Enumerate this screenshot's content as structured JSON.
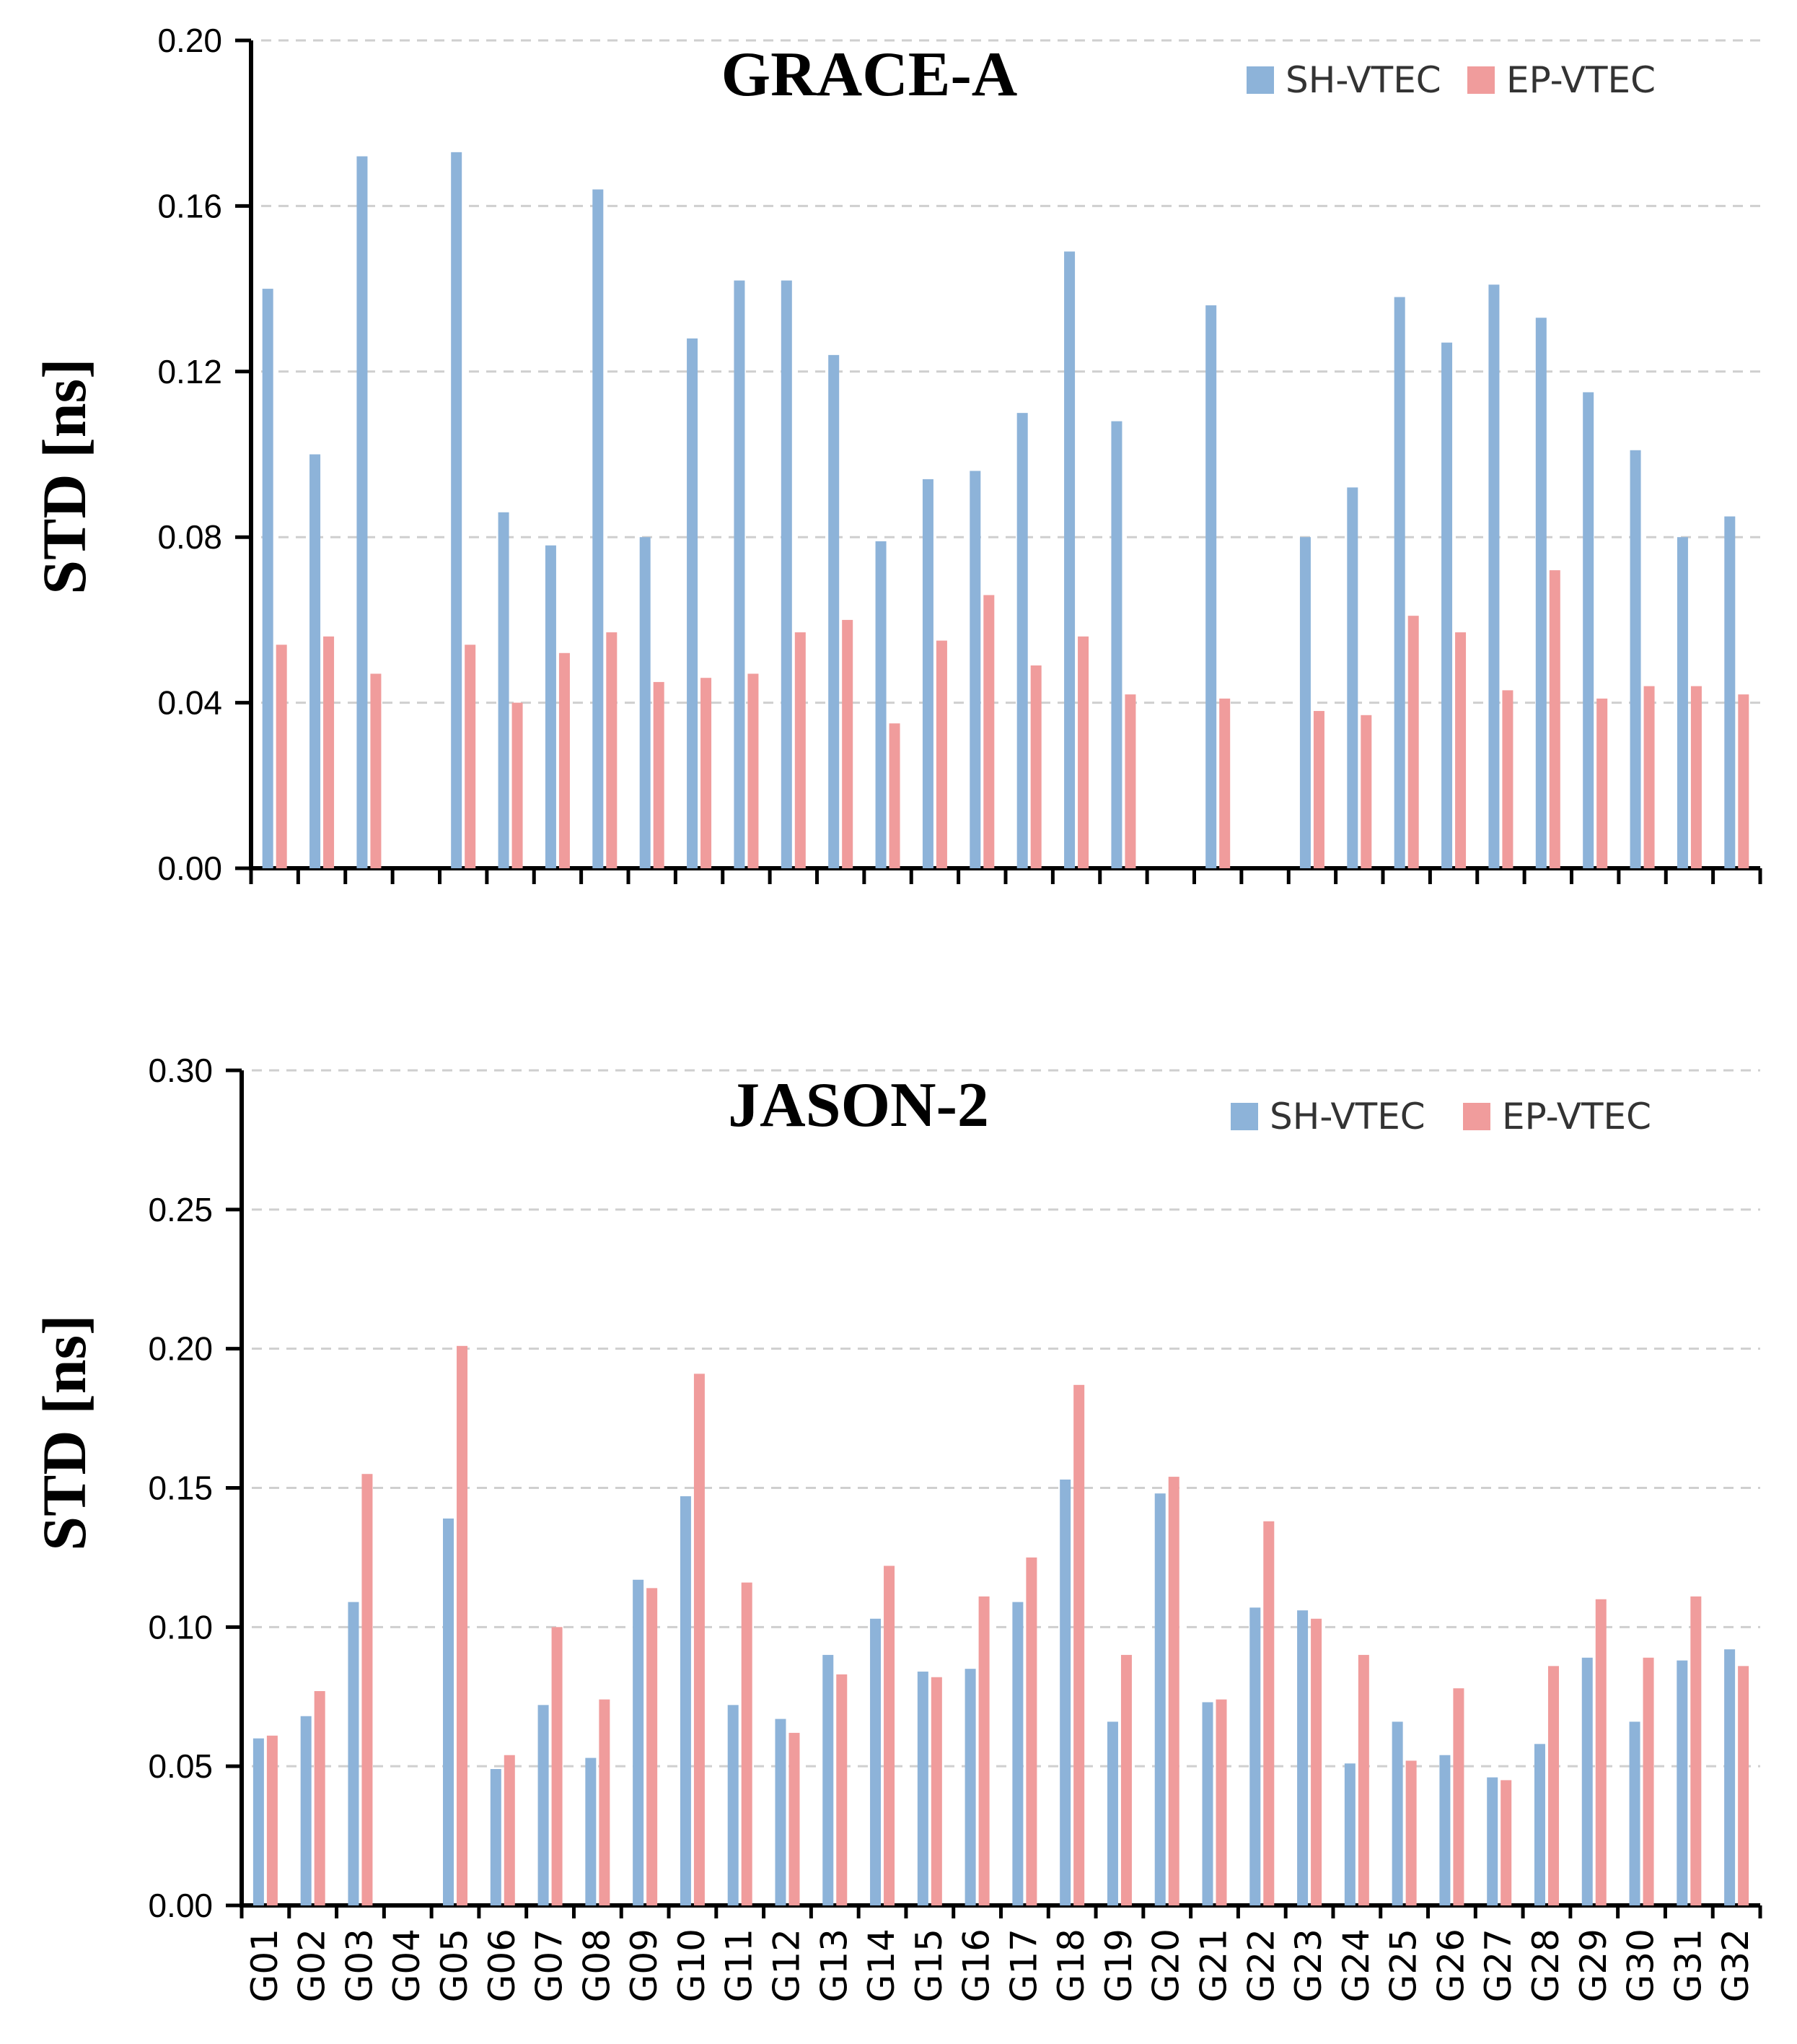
{
  "chart_data": [
    {
      "type": "bar",
      "title": "GRACE-A",
      "xlabel": "",
      "ylabel": "STD [ns]",
      "ylim": [
        0,
        0.2
      ],
      "yticks": [
        "0.00",
        "0.04",
        "0.08",
        "0.12",
        "0.16",
        "0.20"
      ],
      "grid": true,
      "legend_position": "top-right",
      "categories": [
        "G01",
        "G02",
        "G03",
        "G04",
        "G05",
        "G06",
        "G07",
        "G08",
        "G09",
        "G10",
        "G11",
        "G12",
        "G13",
        "G14",
        "G15",
        "G16",
        "G17",
        "G18",
        "G19",
        "G20",
        "G21",
        "G22",
        "G23",
        "G24",
        "G25",
        "G26",
        "G27",
        "G28",
        "G29",
        "G30",
        "G31",
        "G32"
      ],
      "series": [
        {
          "name": "SH-VTEC",
          "color": "#8db3d9",
          "values": [
            0.14,
            0.1,
            0.172,
            null,
            0.173,
            0.086,
            0.078,
            0.164,
            0.08,
            0.128,
            0.142,
            0.142,
            0.124,
            0.079,
            0.094,
            0.096,
            0.11,
            0.149,
            0.108,
            null,
            0.136,
            null,
            0.08,
            0.092,
            0.138,
            0.127,
            0.141,
            0.133,
            0.115,
            0.101,
            0.08,
            0.085
          ]
        },
        {
          "name": "EP-VTEC",
          "color": "#f09c9c",
          "values": [
            0.054,
            0.056,
            0.047,
            null,
            0.054,
            0.04,
            0.052,
            0.057,
            0.045,
            0.046,
            0.047,
            0.057,
            0.06,
            0.035,
            0.055,
            0.066,
            0.049,
            0.056,
            0.042,
            null,
            0.041,
            null,
            0.038,
            0.037,
            0.061,
            0.057,
            0.043,
            0.072,
            0.041,
            0.044,
            0.044,
            0.042
          ]
        }
      ]
    },
    {
      "type": "bar",
      "title": "JASON-2",
      "xlabel": "",
      "ylabel": "STD [ns]",
      "ylim": [
        0,
        0.3
      ],
      "yticks": [
        "0.00",
        "0.05",
        "0.10",
        "0.15",
        "0.20",
        "0.25",
        "0.30"
      ],
      "grid": true,
      "legend_position": "top-right",
      "categories": [
        "G01",
        "G02",
        "G03",
        "G04",
        "G05",
        "G06",
        "G07",
        "G08",
        "G09",
        "G10",
        "G11",
        "G12",
        "G13",
        "G14",
        "G15",
        "G16",
        "G17",
        "G18",
        "G19",
        "G20",
        "G21",
        "G22",
        "G23",
        "G24",
        "G25",
        "G26",
        "G27",
        "G28",
        "G29",
        "G30",
        "G31",
        "G32"
      ],
      "series": [
        {
          "name": "SH-VTEC",
          "color": "#8db3d9",
          "values": [
            0.06,
            0.068,
            0.109,
            null,
            0.139,
            0.049,
            0.072,
            0.053,
            0.117,
            0.147,
            0.072,
            0.067,
            0.09,
            0.103,
            0.084,
            0.085,
            0.109,
            0.153,
            0.066,
            0.148,
            0.073,
            0.107,
            0.106,
            0.051,
            0.066,
            0.054,
            0.046,
            0.058,
            0.089,
            0.066,
            0.088,
            0.092
          ]
        },
        {
          "name": "EP-VTEC",
          "color": "#f09c9c",
          "values": [
            0.061,
            0.077,
            0.155,
            null,
            0.201,
            0.054,
            0.1,
            0.074,
            0.114,
            0.191,
            0.116,
            0.062,
            0.083,
            0.122,
            0.082,
            0.111,
            0.125,
            0.187,
            0.09,
            0.154,
            0.074,
            0.138,
            0.103,
            0.09,
            0.052,
            0.078,
            0.045,
            0.086,
            0.11,
            0.089,
            0.111,
            0.086
          ]
        }
      ]
    }
  ]
}
